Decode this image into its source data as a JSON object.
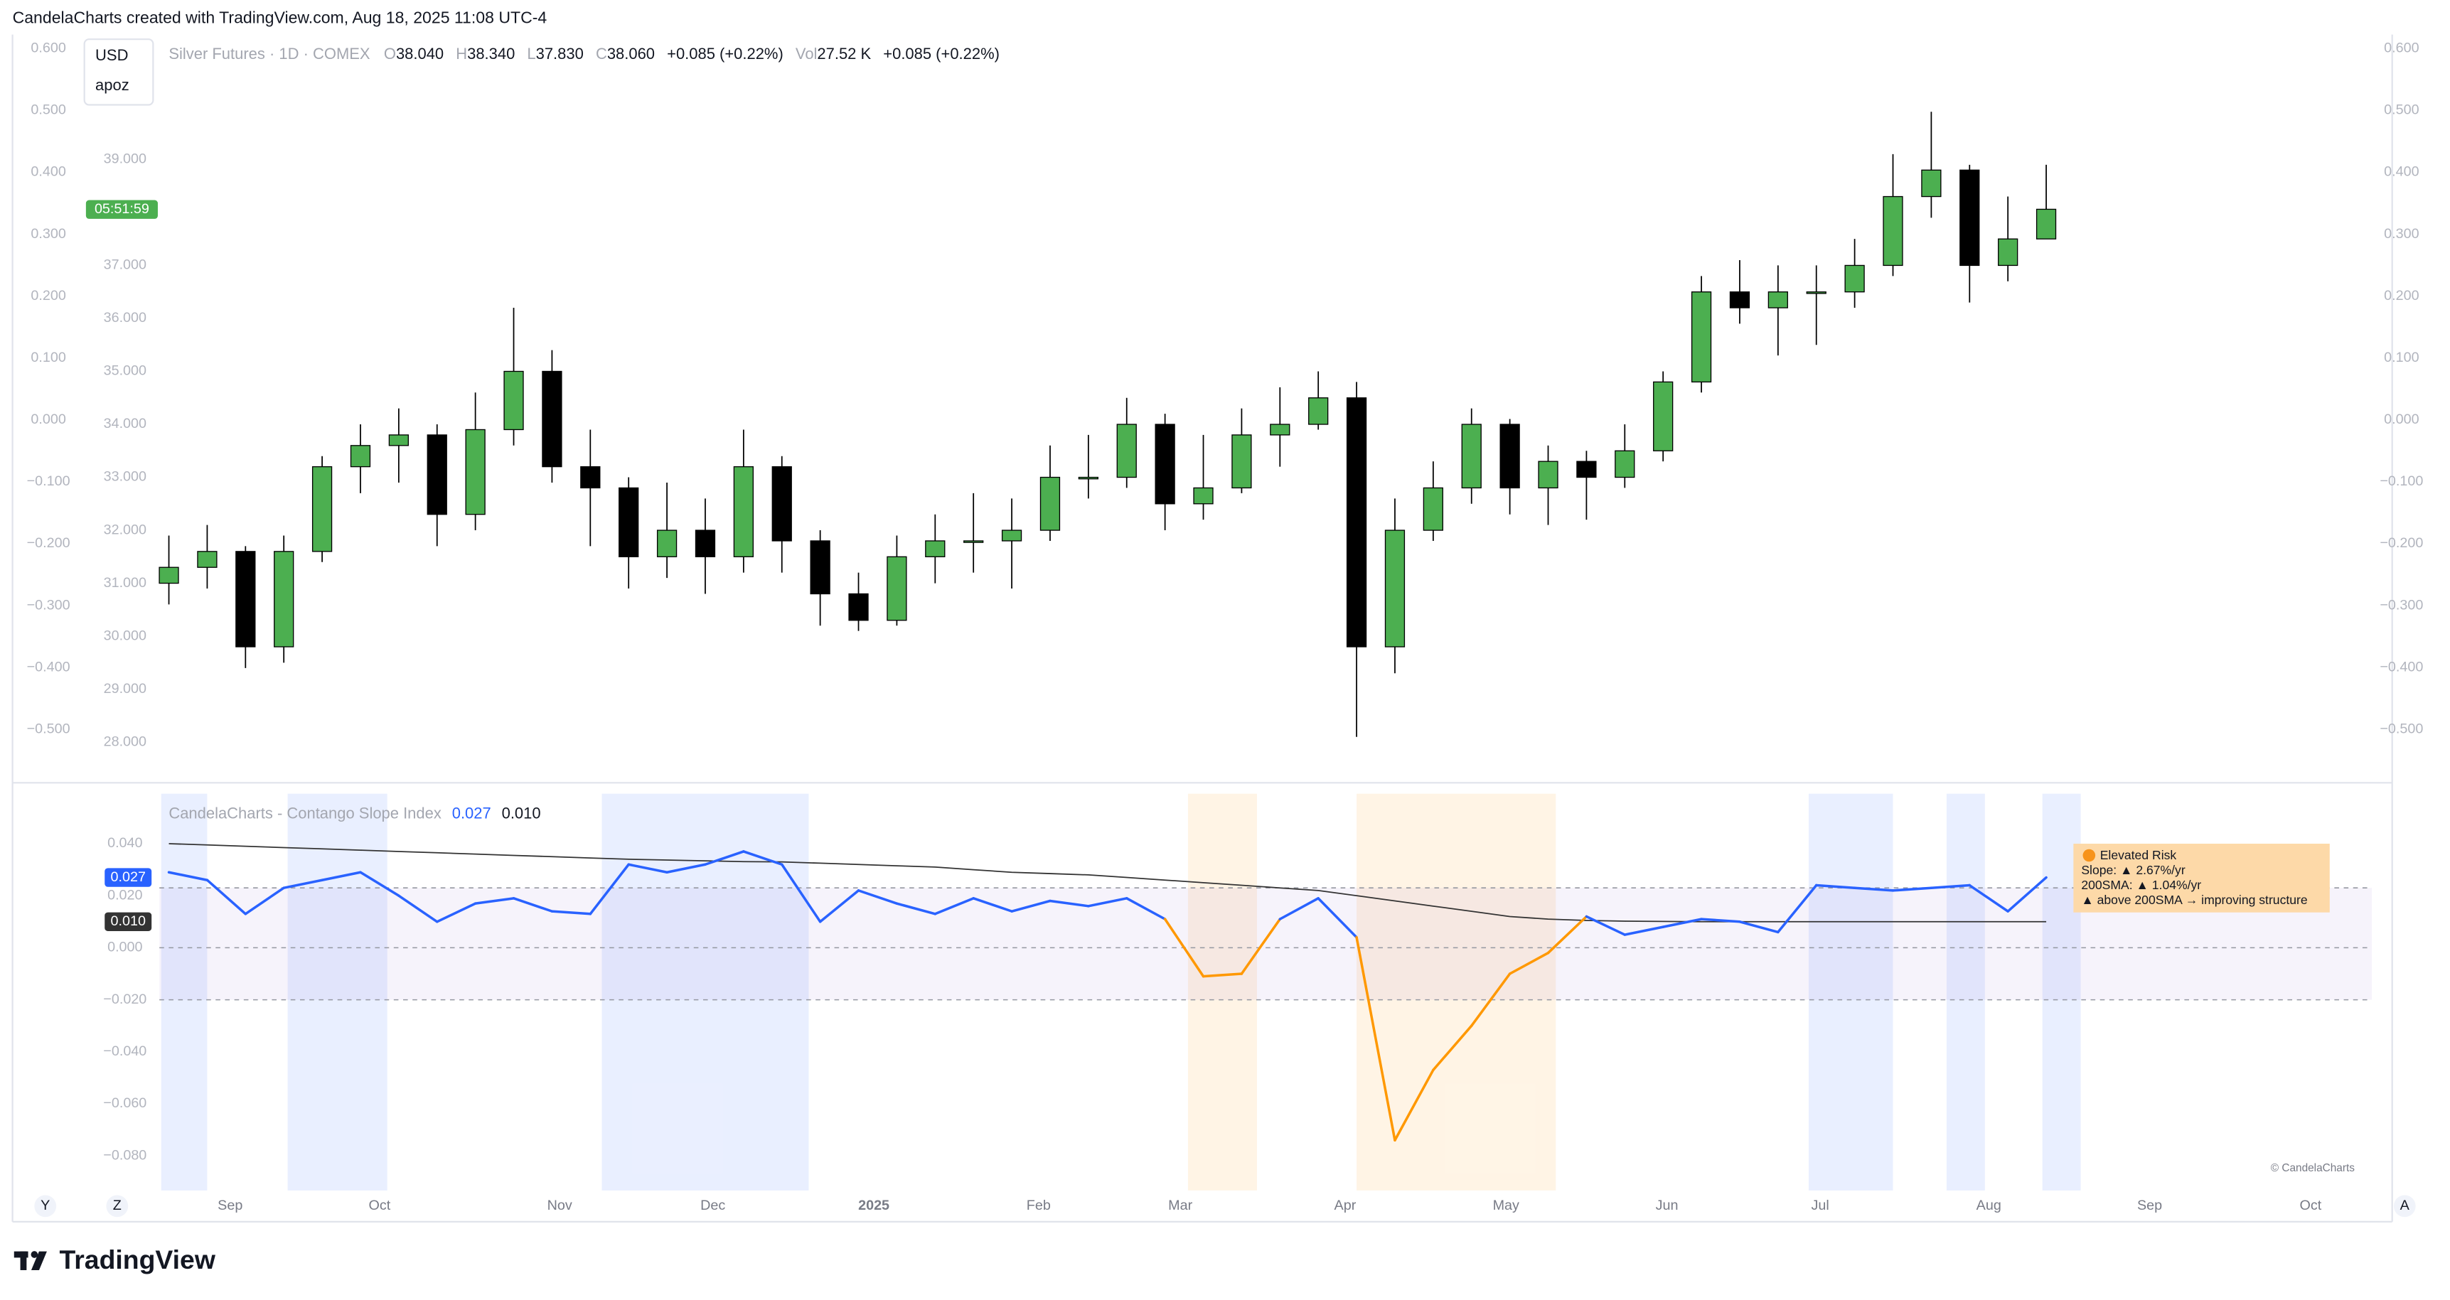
{
  "header": {
    "credit": "CandelaCharts created with TradingView.com, Aug 18, 2025 11:08 UTC-4"
  },
  "chart_data": [
    {
      "type": "candlestick",
      "legend": {
        "name": "Silver Futures · 1D · COMEX",
        "fields": [
          {
            "key": "O",
            "value": "38.040"
          },
          {
            "key": "H",
            "value": "38.340"
          },
          {
            "key": "L",
            "value": "37.830"
          },
          {
            "key": "C",
            "value": "38.060"
          }
        ],
        "change": "+0.085 (+0.22%)",
        "volume_key": "Vol",
        "volume": "27.52 K",
        "volume_change": "+0.085 (+0.22%)"
      },
      "currency": "USD",
      "unit_menu": "apoz",
      "countdown": "05:51:59",
      "categories": [
        null,
        null,
        null,
        null,
        null,
        null,
        null,
        null,
        null,
        null,
        null,
        null,
        null,
        null,
        null,
        null,
        null,
        null,
        null,
        null,
        null,
        null,
        null,
        null,
        null,
        null,
        null,
        null,
        null,
        null,
        null,
        null,
        null,
        null,
        null,
        null,
        null,
        null,
        null,
        null,
        null,
        null,
        null,
        null,
        null,
        null,
        null,
        null,
        null,
        null
      ],
      "open": [
        31.0,
        31.3,
        31.6,
        29.8,
        31.6,
        33.2,
        33.6,
        33.8,
        32.3,
        33.9,
        35.0,
        33.2,
        32.8,
        31.5,
        32.0,
        31.5,
        33.2,
        31.8,
        30.8,
        30.3,
        31.5,
        31.8,
        31.8,
        32.0,
        33.0,
        33.0,
        34.0,
        32.5,
        32.8,
        33.8,
        34.0,
        34.5,
        29.8,
        32.0,
        32.8,
        34.0,
        32.8,
        33.3,
        33.0,
        33.5,
        34.8,
        36.5,
        36.2,
        36.5,
        36.5,
        37.0,
        38.3,
        38.8,
        37.0,
        37.5
      ],
      "high": [
        31.9,
        32.1,
        31.7,
        31.9,
        33.4,
        34.0,
        34.3,
        34.0,
        34.6,
        36.2,
        35.4,
        33.9,
        33.0,
        32.9,
        32.6,
        33.9,
        33.4,
        32.0,
        31.2,
        31.9,
        32.3,
        32.7,
        32.6,
        33.6,
        33.8,
        34.5,
        34.2,
        33.8,
        34.3,
        34.7,
        35.0,
        34.8,
        32.6,
        33.3,
        34.3,
        34.1,
        33.6,
        33.5,
        34.0,
        35.0,
        36.8,
        37.1,
        37.0,
        37.0,
        37.5,
        39.1,
        39.9,
        38.9,
        38.3,
        38.9
      ],
      "low": [
        30.6,
        30.9,
        29.4,
        29.5,
        31.4,
        32.7,
        32.9,
        31.7,
        32.0,
        33.6,
        32.9,
        31.7,
        30.9,
        31.1,
        30.8,
        31.2,
        31.2,
        30.2,
        30.1,
        30.2,
        31.0,
        31.2,
        30.9,
        31.8,
        32.6,
        32.8,
        32.0,
        32.2,
        32.7,
        33.2,
        33.9,
        28.1,
        29.3,
        31.8,
        32.5,
        32.3,
        32.1,
        32.2,
        32.8,
        33.3,
        34.6,
        35.9,
        35.3,
        35.5,
        36.2,
        36.8,
        37.9,
        36.3,
        36.7,
        37.6
      ],
      "close": [
        31.3,
        31.6,
        29.8,
        31.6,
        33.2,
        33.6,
        33.8,
        32.3,
        33.9,
        35.0,
        33.2,
        32.8,
        31.5,
        32.0,
        31.5,
        33.2,
        31.8,
        30.8,
        30.3,
        31.5,
        31.8,
        31.8,
        32.0,
        33.0,
        33.0,
        34.0,
        32.5,
        32.8,
        33.8,
        34.0,
        34.5,
        29.8,
        32.0,
        32.8,
        34.0,
        32.8,
        33.3,
        33.0,
        33.5,
        34.8,
        36.5,
        36.2,
        36.5,
        36.5,
        37.0,
        38.3,
        38.8,
        37.0,
        37.5,
        38.06
      ],
      "up_color": "#4caf50",
      "down_color": "#000000",
      "xlim": [
        -4,
        57.5
      ],
      "xticks": [
        {
          "value": 1.6,
          "label": "Sep"
        },
        {
          "value": 5.5,
          "label": "Oct"
        },
        {
          "value": 10.2,
          "label": "Nov"
        },
        {
          "value": 14.2,
          "label": "Dec"
        },
        {
          "value": 18.4,
          "label": "2025"
        },
        {
          "value": 22.7,
          "label": "Feb"
        },
        {
          "value": 26.4,
          "label": "Mar"
        },
        {
          "value": 30.7,
          "label": "Apr"
        },
        {
          "value": 34.9,
          "label": "May"
        },
        {
          "value": 39.1,
          "label": "Jun"
        },
        {
          "value": 43.1,
          "label": "Jul"
        },
        {
          "value": 47.5,
          "label": "Aug"
        },
        {
          "value": 51.7,
          "label": "Sep"
        },
        {
          "value": 55.9,
          "label": "Oct"
        }
      ],
      "ylim": [
        27.41,
        41.27
      ],
      "yticks": [
        {
          "value": 28,
          "label": "28.000"
        },
        {
          "value": 29,
          "label": "29.000"
        },
        {
          "value": 30,
          "label": "30.000"
        },
        {
          "value": 31,
          "label": "31.000"
        },
        {
          "value": 32,
          "label": "32.000"
        },
        {
          "value": 33,
          "label": "33.000"
        },
        {
          "value": 34,
          "label": "34.000"
        },
        {
          "value": 35,
          "label": "35.000"
        },
        {
          "value": 36,
          "label": "36.000"
        },
        {
          "value": 37,
          "label": "37.000"
        },
        {
          "value": 38,
          "label": "38.000"
        },
        {
          "value": 39,
          "label": "39.000"
        }
      ],
      "y2lim": [
        -0.571,
        0.615
      ],
      "y2ticks": [
        {
          "value": 0.6,
          "label": "0.600"
        },
        {
          "value": 0.5,
          "label": "0.500"
        },
        {
          "value": 0.4,
          "label": "0.400"
        },
        {
          "value": 0.3,
          "label": "0.300"
        },
        {
          "value": 0.2,
          "label": "0.200"
        },
        {
          "value": 0.1,
          "label": "0.100"
        },
        {
          "value": 0,
          "label": "0.000"
        },
        {
          "value": -0.1,
          "label": "−0.100"
        },
        {
          "value": -0.2,
          "label": "−0.200"
        },
        {
          "value": -0.3,
          "label": "−0.300"
        },
        {
          "value": -0.4,
          "label": "−0.400"
        },
        {
          "value": -0.5,
          "label": "−0.500"
        }
      ]
    },
    {
      "type": "line",
      "title": "CandelaCharts - Contango Slope Index",
      "series": [
        {
          "color": "#2962ff",
          "negative_color": "#ff9800",
          "values": [
            0.029,
            0.026,
            0.013,
            0.023,
            0.026,
            0.029,
            0.02,
            0.01,
            0.017,
            0.019,
            0.014,
            0.013,
            0.032,
            0.029,
            0.032,
            0.037,
            0.032,
            0.01,
            0.022,
            0.017,
            0.013,
            0.019,
            0.014,
            0.018,
            0.016,
            0.019,
            0.011,
            -0.011,
            -0.01,
            0.011,
            0.019,
            0.004,
            -0.074,
            -0.047,
            -0.03,
            -0.01,
            -0.002,
            0.012,
            0.005,
            0.008,
            0.011,
            0.01,
            0.006,
            0.024,
            0.023,
            0.022,
            0.023,
            0.024,
            0.014,
            0.027
          ],
          "last": 0.027
        },
        {
          "color": "#333333",
          "values": [
            0.04,
            0.0395,
            0.039,
            0.0385,
            0.038,
            0.0375,
            0.037,
            0.0365,
            0.036,
            0.0355,
            0.035,
            0.0345,
            0.034,
            0.0337,
            0.0334,
            0.0331,
            0.033,
            0.0325,
            0.032,
            0.0315,
            0.031,
            0.03,
            0.029,
            0.0285,
            0.028,
            0.027,
            0.026,
            0.025,
            0.024,
            0.023,
            0.022,
            0.02,
            0.018,
            0.016,
            0.014,
            0.012,
            0.011,
            0.0105,
            0.0102,
            0.0101,
            0.01,
            0.01,
            0.01,
            0.01,
            0.01,
            0.01,
            0.01,
            0.01,
            0.01,
            0.01
          ],
          "last": {
            "value": 0.01,
            "label": "0.010"
          }
        }
      ],
      "ylim": [
        -0.0933,
        0.0592
      ],
      "yticks": [
        {
          "value": 0.04,
          "label": "0.040"
        },
        {
          "value": 0.02,
          "label": "0.020"
        },
        {
          "value": 0,
          "label": "0.000"
        },
        {
          "value": -0.02,
          "label": "−0.020"
        },
        {
          "value": -0.04,
          "label": "−0.040"
        },
        {
          "value": -0.06,
          "label": "−0.060"
        },
        {
          "value": -0.08,
          "label": "−0.080"
        }
      ],
      "levels": [
        0.023,
        0,
        -0.02
      ],
      "regions": [
        {
          "start": -0.2,
          "end": 1.0,
          "color": "#2962ff"
        },
        {
          "start": 3.1,
          "end": 5.7,
          "color": "#2962ff"
        },
        {
          "start": 11.3,
          "end": 16.7,
          "color": "#2962ff"
        },
        {
          "start": 26.6,
          "end": 28.4,
          "color": "#ff9800"
        },
        {
          "start": 31.0,
          "end": 36.2,
          "color": "#ff9800"
        },
        {
          "start": 42.8,
          "end": 45.0,
          "color": "#2962ff"
        },
        {
          "start": 46.4,
          "end": 47.4,
          "color": "#2962ff"
        },
        {
          "start": 48.9,
          "end": 49.9,
          "color": "#2962ff"
        }
      ],
      "table": {
        "title": "Elevated Risk",
        "lines": [
          "Slope: ▲ 2.67%/yr",
          "200SMA: ▲ 1.04%/yr",
          "▲ above 200SMA → improving structure"
        ]
      },
      "watermark": "© CandelaCharts"
    }
  ],
  "toolbar": {
    "left": [
      "Y",
      "Z"
    ],
    "right": "A"
  },
  "footer": {
    "brand": "TradingView"
  }
}
